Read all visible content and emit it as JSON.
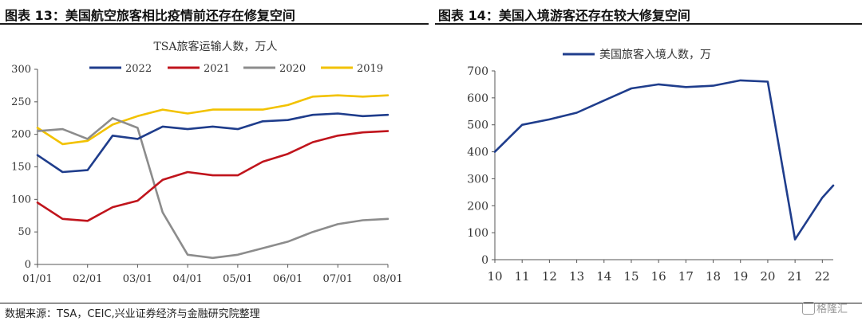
{
  "figures": {
    "left_title": "图表 13：美国航空旅客相比疫情前还存在修复空间",
    "right_title": "图表 14：美国入境游客还存在较大修复空间"
  },
  "source": "数据来源：TSA，CEIC,兴业证券经济与金融研究院整理",
  "watermark": "格隆汇",
  "chart_data": [
    {
      "type": "line",
      "title": "TSA旅客运输人数，万人",
      "xlabel": "",
      "ylabel": "",
      "x": [
        "01/01",
        "01/15",
        "02/01",
        "02/15",
        "03/01",
        "03/15",
        "04/01",
        "04/15",
        "05/01",
        "05/15",
        "06/01",
        "06/15",
        "07/01",
        "07/15",
        "08/01"
      ],
      "x_ticks": [
        "01/01",
        "02/01",
        "03/01",
        "04/01",
        "05/01",
        "06/01",
        "07/01",
        "08/01"
      ],
      "ylim": [
        0,
        300
      ],
      "y_ticks": [
        0,
        50,
        100,
        150,
        200,
        250,
        300
      ],
      "legend_position": "top",
      "series": [
        {
          "name": "2022",
          "color": "#1f3d8c",
          "values": [
            168,
            142,
            145,
            198,
            193,
            212,
            208,
            212,
            208,
            220,
            222,
            230,
            232,
            228,
            230
          ]
        },
        {
          "name": "2021",
          "color": "#c0141c",
          "values": [
            95,
            70,
            67,
            88,
            98,
            130,
            142,
            137,
            137,
            158,
            170,
            188,
            198,
            203,
            205
          ]
        },
        {
          "name": "2020",
          "color": "#8c8c8c",
          "values": [
            205,
            208,
            193,
            225,
            210,
            80,
            15,
            10,
            15,
            25,
            35,
            50,
            62,
            68,
            70
          ]
        },
        {
          "name": "2019",
          "color": "#f2c200",
          "values": [
            210,
            185,
            190,
            215,
            228,
            238,
            232,
            238,
            238,
            238,
            245,
            258,
            260,
            258,
            260
          ]
        }
      ]
    },
    {
      "type": "line",
      "title": "",
      "xlabel": "",
      "ylabel": "",
      "x": [
        10,
        11,
        12,
        13,
        14,
        15,
        16,
        17,
        18,
        19,
        20,
        21,
        22,
        22.4
      ],
      "x_ticks": [
        "10",
        "11",
        "12",
        "13",
        "14",
        "15",
        "16",
        "17",
        "18",
        "19",
        "20",
        "21",
        "22"
      ],
      "ylim": [
        0,
        700
      ],
      "y_ticks": [
        0,
        100,
        200,
        300,
        400,
        500,
        600,
        700
      ],
      "legend_position": "top-left",
      "series": [
        {
          "name": "美国旅客入境人数，万",
          "color": "#1f3d8c",
          "values": [
            400,
            500,
            520,
            545,
            590,
            635,
            650,
            640,
            645,
            665,
            660,
            75,
            230,
            275
          ]
        }
      ]
    }
  ]
}
